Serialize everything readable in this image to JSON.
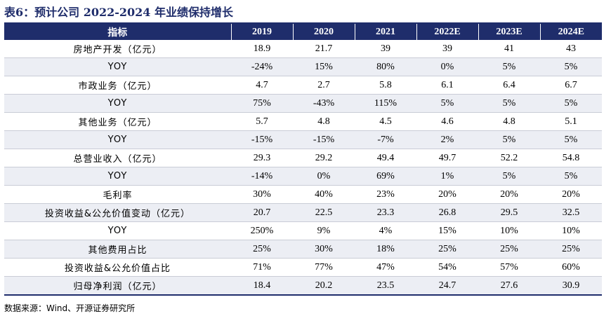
{
  "title": "表6：预计公司 2022-2024 年业绩保持增长",
  "table": {
    "headers": [
      "指标",
      "2019",
      "2020",
      "2021",
      "2022E",
      "2023E",
      "2024E"
    ],
    "rows": [
      {
        "label": "房地产开发（亿元）",
        "values": [
          "18.9",
          "21.7",
          "39",
          "39",
          "41",
          "43"
        ]
      },
      {
        "label": "YOY",
        "values": [
          "-24%",
          "15%",
          "80%",
          "0%",
          "5%",
          "5%"
        ]
      },
      {
        "label": "市政业务（亿元）",
        "values": [
          "4.7",
          "2.7",
          "5.8",
          "6.1",
          "6.4",
          "6.7"
        ]
      },
      {
        "label": "YOY",
        "values": [
          "75%",
          "-43%",
          "115%",
          "5%",
          "5%",
          "5%"
        ]
      },
      {
        "label": "其他业务（亿元）",
        "values": [
          "5.7",
          "4.8",
          "4.5",
          "4.6",
          "4.8",
          "5.1"
        ]
      },
      {
        "label": "YOY",
        "values": [
          "-15%",
          "-15%",
          "-7%",
          "2%",
          "5%",
          "5%"
        ]
      },
      {
        "label": "总营业收入（亿元）",
        "values": [
          "29.3",
          "29.2",
          "49.4",
          "49.7",
          "52.2",
          "54.8"
        ]
      },
      {
        "label": "YOY",
        "values": [
          "-14%",
          "0%",
          "69%",
          "1%",
          "5%",
          "5%"
        ]
      },
      {
        "label": "毛利率",
        "values": [
          "30%",
          "40%",
          "23%",
          "20%",
          "20%",
          "20%"
        ]
      },
      {
        "label": "投资收益&公允价值变动（亿元）",
        "values": [
          "20.7",
          "22.5",
          "23.3",
          "26.8",
          "29.5",
          "32.5"
        ]
      },
      {
        "label": "YOY",
        "values": [
          "250%",
          "9%",
          "4%",
          "15%",
          "10%",
          "10%"
        ]
      },
      {
        "label": "其他费用占比",
        "values": [
          "25%",
          "30%",
          "18%",
          "25%",
          "25%",
          "25%"
        ]
      },
      {
        "label": "投资收益&公允价值占比",
        "values": [
          "71%",
          "77%",
          "47%",
          "54%",
          "57%",
          "60%"
        ]
      },
      {
        "label": "归母净利润（亿元）",
        "values": [
          "18.4",
          "20.2",
          "23.5",
          "24.7",
          "27.6",
          "30.9"
        ]
      }
    ]
  },
  "source": "数据来源：Wind、开源证券研究所",
  "colors": {
    "header_bg": "#1f2d6b",
    "header_text": "#ffffff",
    "shade_row": "#eceef4",
    "title_text": "#1f2d6b"
  }
}
